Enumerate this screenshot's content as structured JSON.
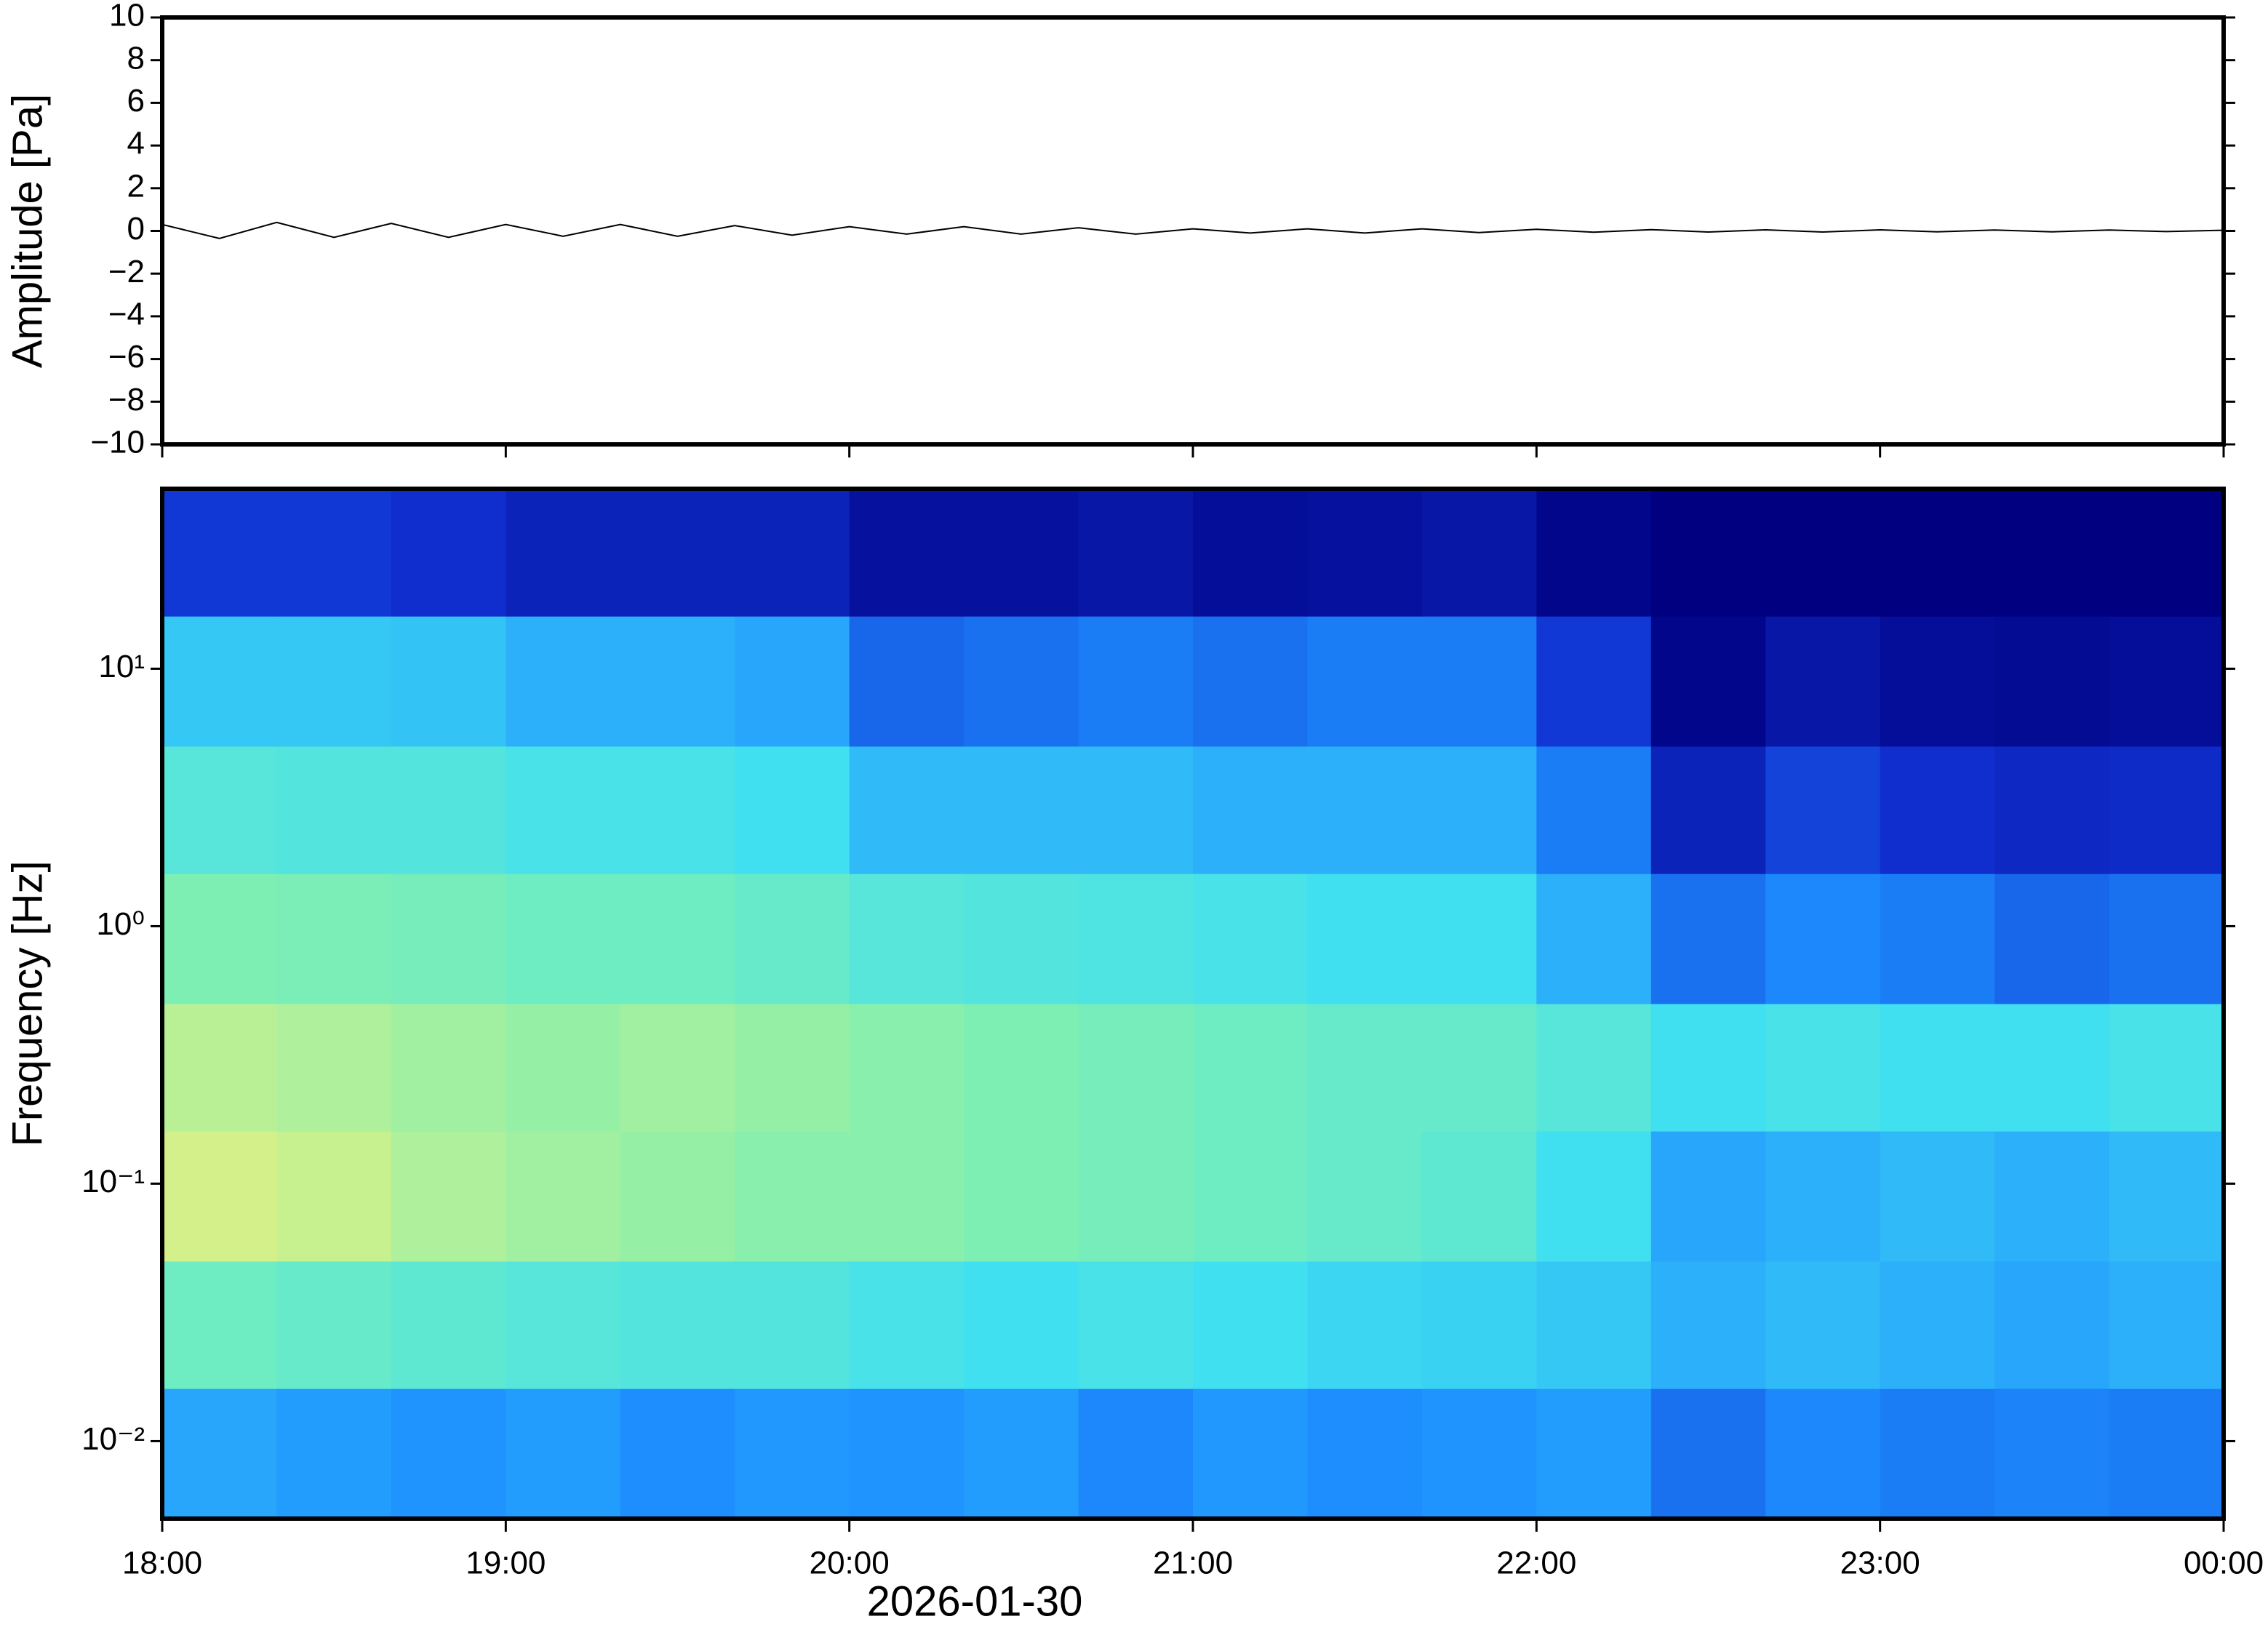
{
  "chart_data": [
    {
      "type": "line",
      "ylabel": "Amplitude [Pa]",
      "color": "#000000",
      "ylim": [
        -10,
        10
      ],
      "yticks": [
        {
          "value": -10,
          "label": "−10"
        },
        {
          "value": -8,
          "label": "−8"
        },
        {
          "value": -6,
          "label": "−6"
        },
        {
          "value": -4,
          "label": "−4"
        },
        {
          "value": -2,
          "label": "−2"
        },
        0,
        2,
        4,
        6,
        8,
        10
      ],
      "x": [
        "18:00",
        "18:10",
        "18:20",
        "18:30",
        "18:40",
        "18:50",
        "19:00",
        "19:10",
        "19:20",
        "19:30",
        "19:40",
        "19:50",
        "20:00",
        "20:10",
        "20:20",
        "20:30",
        "20:40",
        "20:50",
        "21:00",
        "21:10",
        "21:20",
        "21:30",
        "21:40",
        "21:50",
        "22:00",
        "22:10",
        "22:20",
        "22:30",
        "22:40",
        "22:50",
        "23:00",
        "23:10",
        "23:20",
        "23:30",
        "23:40",
        "23:50",
        "00:00"
      ],
      "values": [
        0.3,
        -0.35,
        0.4,
        -0.3,
        0.35,
        -0.3,
        0.3,
        -0.25,
        0.3,
        -0.25,
        0.25,
        -0.2,
        0.2,
        -0.15,
        0.2,
        -0.15,
        0.15,
        -0.15,
        0.1,
        -0.1,
        0.1,
        -0.1,
        0.1,
        -0.08,
        0.08,
        -0.06,
        0.06,
        -0.05,
        0.05,
        -0.05,
        0.05,
        -0.04,
        0.04,
        -0.04,
        0.04,
        -0.03,
        0.03
      ]
    },
    {
      "type": "heatmap",
      "ylabel": "Frequency [Hz]",
      "xlabel": "2026-01-30",
      "log_y": true,
      "ylim": [
        0.005,
        50
      ],
      "yticks": [
        {
          "value": 0.01,
          "label": "10⁻²"
        },
        {
          "value": 0.1,
          "label": "10⁻¹"
        },
        {
          "value": 1,
          "label": "10⁰"
        },
        {
          "value": 10,
          "label": "10¹"
        }
      ],
      "xticks": [
        "18:00",
        "19:00",
        "20:00",
        "21:00",
        "22:00",
        "23:00",
        "00:00"
      ],
      "xbins": [
        "18:00",
        "18:20",
        "18:40",
        "19:00",
        "19:20",
        "19:40",
        "20:00",
        "20:20",
        "20:40",
        "21:00",
        "21:20",
        "21:40",
        "22:00",
        "22:20",
        "22:40",
        "23:00",
        "23:20",
        "23:40",
        "00:00"
      ],
      "ybins": [
        0.005,
        0.016,
        0.05,
        0.16,
        0.5,
        1.6,
        5,
        16,
        50
      ],
      "colors": [
        "#000080",
        "#1030d0",
        "#1e90ff",
        "#40e0f0",
        "#80f0b0",
        "#e8f080",
        "#f8b870"
      ],
      "z": [
        [
          0.38,
          0.36,
          0.34,
          0.36,
          0.33,
          0.35,
          0.34,
          0.36,
          0.32,
          0.35,
          0.33,
          0.34,
          0.36,
          0.28,
          0.32,
          0.3,
          0.31,
          0.3
        ],
        [
          0.62,
          0.6,
          0.58,
          0.56,
          0.55,
          0.55,
          0.52,
          0.5,
          0.52,
          0.5,
          0.48,
          0.47,
          0.45,
          0.4,
          0.42,
          0.4,
          0.38,
          0.4
        ],
        [
          0.8,
          0.78,
          0.74,
          0.72,
          0.7,
          0.68,
          0.68,
          0.66,
          0.64,
          0.62,
          0.6,
          0.58,
          0.5,
          0.38,
          0.4,
          0.42,
          0.4,
          0.42
        ],
        [
          0.76,
          0.74,
          0.72,
          0.7,
          0.72,
          0.7,
          0.68,
          0.66,
          0.64,
          0.62,
          0.6,
          0.6,
          0.56,
          0.5,
          0.52,
          0.5,
          0.5,
          0.52
        ],
        [
          0.66,
          0.65,
          0.64,
          0.62,
          0.62,
          0.6,
          0.56,
          0.55,
          0.54,
          0.52,
          0.5,
          0.5,
          0.4,
          0.28,
          0.32,
          0.3,
          0.26,
          0.28
        ],
        [
          0.56,
          0.55,
          0.55,
          0.52,
          0.52,
          0.5,
          0.42,
          0.42,
          0.42,
          0.4,
          0.4,
          0.4,
          0.3,
          0.12,
          0.2,
          0.16,
          0.14,
          0.15
        ],
        [
          0.45,
          0.45,
          0.44,
          0.4,
          0.4,
          0.38,
          0.26,
          0.28,
          0.3,
          0.28,
          0.3,
          0.3,
          0.18,
          0.02,
          0.08,
          0.05,
          0.04,
          0.05
        ],
        [
          0.18,
          0.18,
          0.16,
          0.12,
          0.12,
          0.12,
          0.06,
          0.06,
          0.08,
          0.05,
          0.06,
          0.08,
          0.02,
          0,
          0,
          0,
          0,
          0
        ]
      ]
    }
  ]
}
